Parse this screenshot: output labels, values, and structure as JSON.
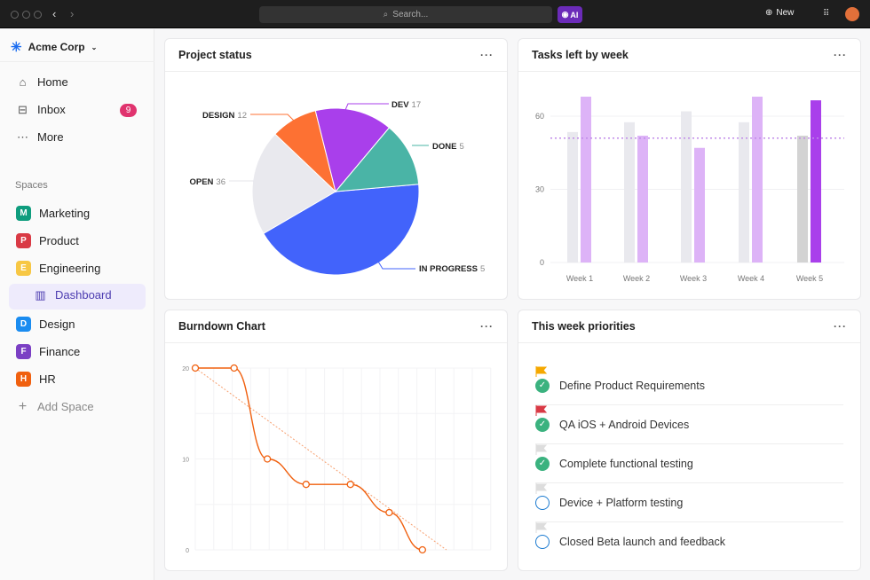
{
  "topbar": {
    "search_placeholder": "Search...",
    "ai_label": "AI",
    "new_label": "New"
  },
  "sidebar": {
    "workspace": "Acme Corp",
    "nav": [
      {
        "label": "Home",
        "icon": "home-icon"
      },
      {
        "label": "Inbox",
        "icon": "inbox-icon",
        "badge": "9"
      },
      {
        "label": "More",
        "icon": "more-icon"
      }
    ],
    "spaces_label": "Spaces",
    "spaces": [
      {
        "letter": "M",
        "label": "Marketing",
        "color": "#0f9d7e"
      },
      {
        "letter": "P",
        "label": "Product",
        "color": "#d93a45"
      },
      {
        "letter": "E",
        "label": "Engineering",
        "color": "#f7c744"
      },
      {
        "letter": "D",
        "label": "Design",
        "color": "#1a8cf0"
      },
      {
        "letter": "F",
        "label": "Finance",
        "color": "#7b3fc4"
      },
      {
        "letter": "H",
        "label": "HR",
        "color": "#f0600f"
      }
    ],
    "dashboard_label": "Dashboard",
    "add_space": "Add Space"
  },
  "cards": {
    "project_status": "Project status",
    "tasks_left": "Tasks left by week",
    "burndown": "Burndown Chart",
    "priorities": "This week priorities",
    "menu": "···"
  },
  "chart_data": [
    {
      "type": "pie",
      "slices": [
        {
          "label": "IN PROGRESS",
          "count": "5",
          "share": 43,
          "color": "#4263fb"
        },
        {
          "label": "OPEN",
          "count": "36",
          "share": 20.5,
          "color": "#e9e9ee"
        },
        {
          "label": "DESIGN",
          "count": "12",
          "share": 9,
          "color": "#fd7133"
        },
        {
          "label": "DEV",
          "count": "17",
          "share": 15,
          "color": "#a93feb"
        },
        {
          "label": "DONE",
          "count": "5",
          "share": 12.5,
          "color": "#4ab4a6"
        }
      ]
    },
    {
      "type": "bar",
      "categories": [
        "Week 1",
        "Week 2",
        "Week 3",
        "Week 4",
        "Week 5"
      ],
      "series": [
        {
          "values": [
            53.5,
            57.5,
            62,
            57.5,
            52
          ]
        },
        {
          "values": [
            68,
            52,
            47,
            68,
            66.5
          ]
        }
      ],
      "reference_line": 51,
      "ylim": [
        0,
        60
      ],
      "yticks": [
        "0",
        "30",
        "60"
      ],
      "grid": true,
      "colors": {
        "grey": "#e9e9ee",
        "purple": "#ddb3f7",
        "highlight_grey": "#d3d3d3",
        "highlight_purple": "#a93feb"
      }
    },
    {
      "type": "line",
      "x": [
        0,
        2.1,
        3.9,
        6,
        8.4,
        10.5,
        12.3
      ],
      "y": [
        20,
        20,
        10,
        7.2,
        7.2,
        4.1,
        0
      ],
      "ideal": {
        "x": [
          0,
          13.6
        ],
        "y": [
          20,
          0
        ]
      },
      "ylim": [
        0,
        20
      ],
      "xlim": [
        0,
        16
      ],
      "yticks": [
        "0",
        "10",
        "20"
      ],
      "grid": true,
      "color": "#f0600f"
    }
  ],
  "priorities": [
    {
      "label": "Define Product Requirements",
      "done": true,
      "flag": "#f5a800"
    },
    {
      "label": "QA iOS + Android Devices",
      "done": true,
      "flag": "#d93a45"
    },
    {
      "label": "Complete functional testing",
      "done": true,
      "flag": "#dddddd"
    },
    {
      "label": "Device + Platform testing",
      "done": false,
      "flag": "#dddddd"
    },
    {
      "label": "Closed Beta launch and feedback",
      "done": false,
      "flag": "#dddddd"
    }
  ]
}
